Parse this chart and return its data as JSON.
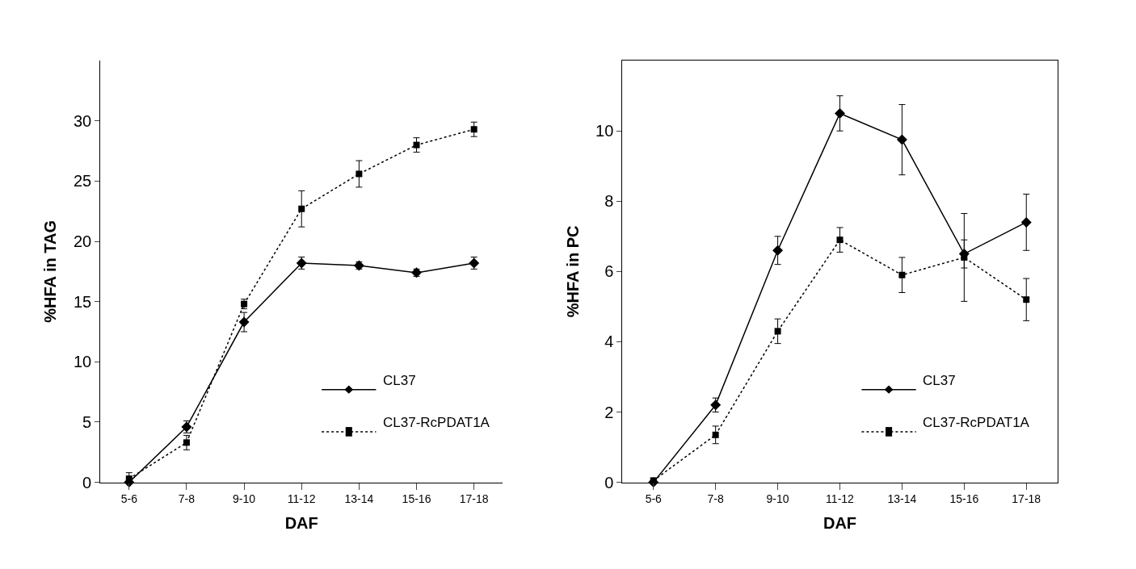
{
  "chart_data": [
    {
      "type": "line",
      "xlabel": "DAF",
      "ylabel": "%HFA in TAG",
      "categories": [
        "5-6",
        "7-8",
        "9-10",
        "11-12",
        "13-14",
        "15-16",
        "17-18"
      ],
      "ylim": [
        0,
        35
      ],
      "yticks": [
        0,
        5,
        10,
        15,
        20,
        25,
        30
      ],
      "legend": "bottom right",
      "series": [
        {
          "name": "CL37",
          "color": "#000000",
          "marker": "diamond",
          "line_style": "solid",
          "values": [
            0,
            4.6,
            13.3,
            18.2,
            18.0,
            17.4,
            18.2
          ],
          "errors": [
            0.3,
            0.5,
            0.8,
            0.5,
            0.3,
            0.3,
            0.5
          ]
        },
        {
          "name": "CL37-RcPDAT1A",
          "color": "#000000",
          "marker": "square",
          "line_style": "dotted",
          "values": [
            0.3,
            3.3,
            14.8,
            22.7,
            25.6,
            28.0,
            29.3
          ],
          "errors": [
            0.5,
            0.6,
            0.4,
            1.5,
            1.1,
            0.6,
            0.6
          ]
        }
      ]
    },
    {
      "type": "line",
      "xlabel": "DAF",
      "ylabel": "%HFA in PC",
      "categories": [
        "5-6",
        "7-8",
        "9-10",
        "11-12",
        "13-14",
        "15-16",
        "17-18"
      ],
      "ylim": [
        0,
        12
      ],
      "yticks": [
        0,
        2,
        4,
        6,
        8,
        10
      ],
      "legend": "bottom right",
      "series": [
        {
          "name": "CL37",
          "color": "#000000",
          "marker": "diamond",
          "line_style": "solid",
          "values": [
            0,
            2.2,
            6.6,
            10.5,
            9.75,
            6.5,
            7.4
          ],
          "errors": [
            null,
            0.2,
            0.4,
            0.5,
            1.0,
            0.4,
            0.8
          ]
        },
        {
          "name": "CL37-RcPDAT1A",
          "color": "#000000",
          "marker": "square",
          "line_style": "dotted",
          "values": [
            0.05,
            1.35,
            4.3,
            6.9,
            5.9,
            6.4,
            5.2
          ],
          "errors": [
            null,
            0.25,
            0.35,
            0.35,
            0.5,
            1.25,
            0.6
          ]
        }
      ]
    }
  ]
}
